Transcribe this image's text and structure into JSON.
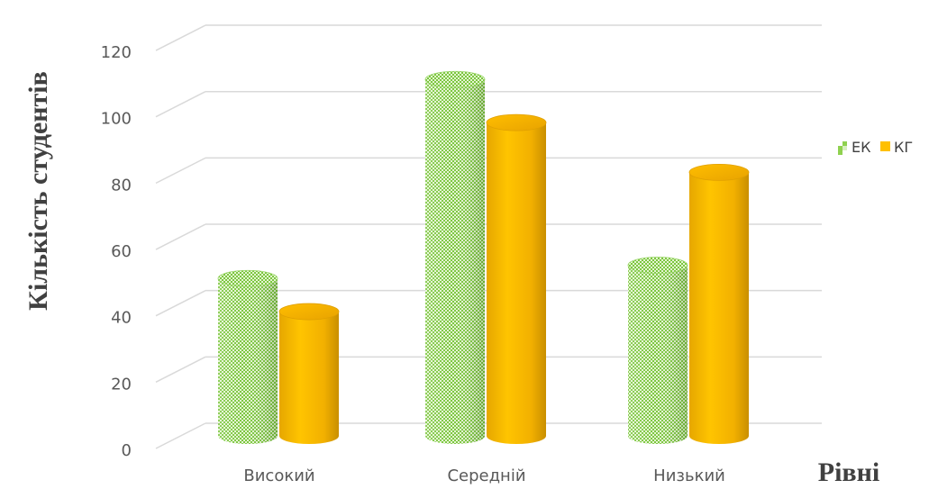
{
  "chart_data": {
    "type": "bar",
    "style": "3d-cylinder",
    "categories": [
      "Високий",
      "Середній",
      "Низький"
    ],
    "series": [
      {
        "name": "ЕК",
        "values": [
          48,
          108,
          52
        ],
        "color": "#8fd14f",
        "pattern": "checkered"
      },
      {
        "name": "КГ",
        "values": [
          38,
          95,
          80
        ],
        "color": "#ffc000"
      }
    ],
    "ylim": [
      0,
      120
    ],
    "yticks": [
      0,
      20,
      40,
      60,
      80,
      100,
      120
    ],
    "ylabel": "Кількість студентів",
    "xlabel": "Рівні",
    "grid": true,
    "legend_position": "right"
  }
}
